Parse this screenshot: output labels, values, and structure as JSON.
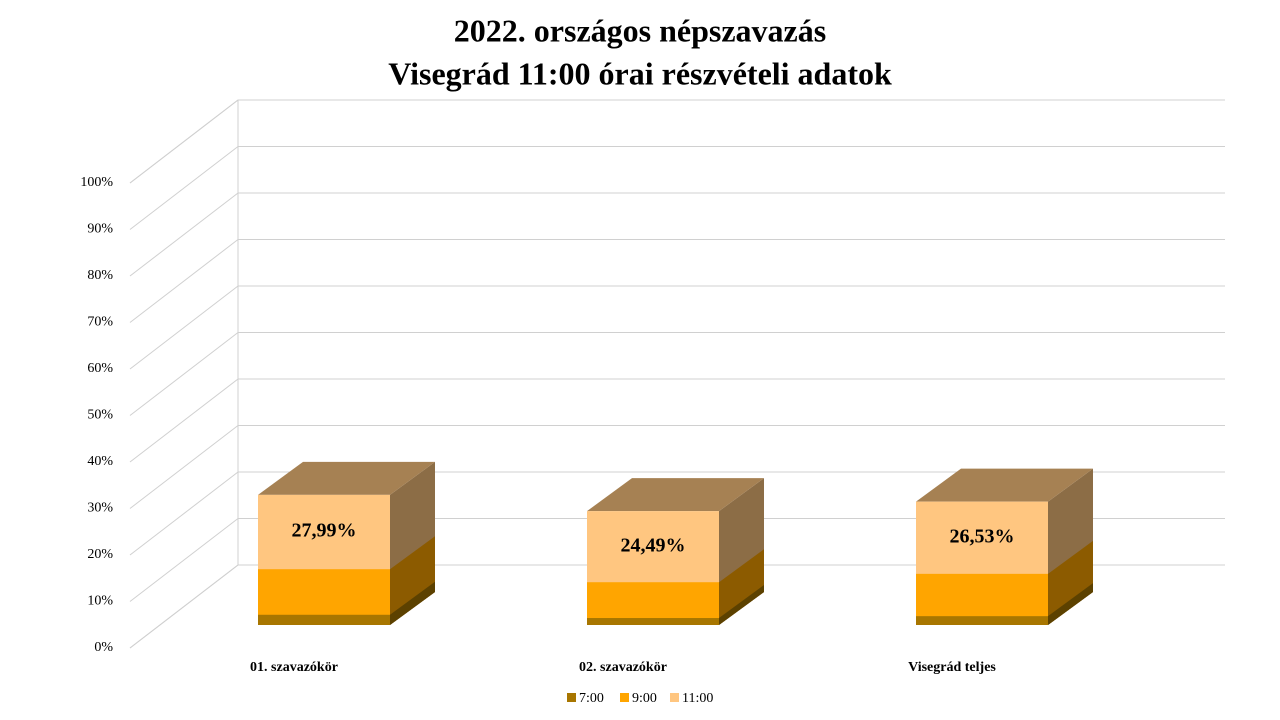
{
  "chart_data": {
    "type": "bar3d",
    "title": [
      "2022. országos népszavazás",
      "Visegrád 11:00 órai részvételi adatok"
    ],
    "categories": [
      "01. szavazókör",
      "02. szavazókör",
      "Visegrád teljes"
    ],
    "series": [
      {
        "name": "7:00",
        "color": "#a87600",
        "values": [
          2.2,
          1.5,
          1.9
        ]
      },
      {
        "name": "9:00",
        "color": "#ffa500",
        "values": [
          12.0,
          9.2,
          11.0
        ]
      },
      {
        "name": "11:00",
        "color": "#ffc680",
        "values": [
          27.99,
          24.49,
          26.53
        ],
        "value_labels": [
          "27,99%",
          "24,49%",
          "26,53%"
        ]
      }
    ],
    "ylim": [
      0,
      100
    ],
    "yticks": [
      {
        "value": 0,
        "label": "0%"
      },
      {
        "value": 10,
        "label": "10%"
      },
      {
        "value": 20,
        "label": "20%"
      },
      {
        "value": 30,
        "label": "30%"
      },
      {
        "value": 40,
        "label": "40%"
      },
      {
        "value": 50,
        "label": "50%"
      },
      {
        "value": 60,
        "label": "60%"
      },
      {
        "value": 70,
        "label": "70%"
      },
      {
        "value": 80,
        "label": "80%"
      },
      {
        "value": 90,
        "label": "90%"
      },
      {
        "value": 100,
        "label": "100%"
      }
    ],
    "grid": true,
    "legend": "bottom"
  }
}
